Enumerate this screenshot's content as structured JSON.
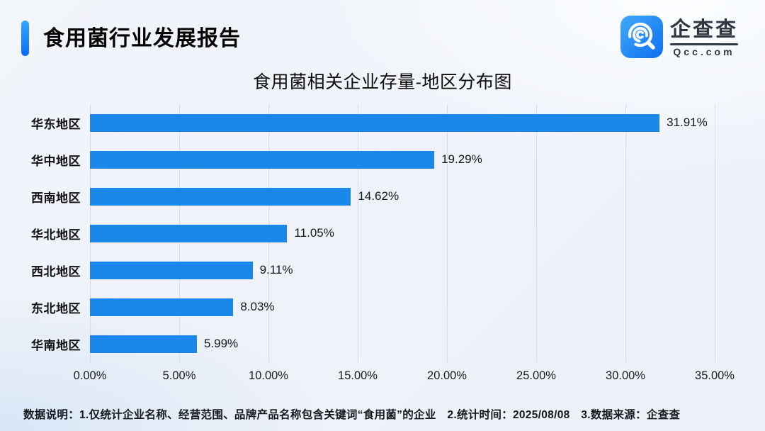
{
  "header": {
    "title": "食用菌行业发展报告"
  },
  "logo": {
    "brand": "企查查",
    "domain": "Qcc.com",
    "icon": "qcc-magnifier-icon"
  },
  "chart_data": {
    "type": "bar",
    "orientation": "horizontal",
    "title": "食用菌相关企业存量-地区分布图",
    "categories": [
      "华东地区",
      "华中地区",
      "西南地区",
      "华北地区",
      "西北地区",
      "东北地区",
      "华南地区"
    ],
    "values": [
      31.91,
      19.29,
      14.62,
      11.05,
      9.11,
      8.03,
      5.99
    ],
    "value_labels": [
      "31.91%",
      "19.29%",
      "14.62%",
      "11.05%",
      "9.11%",
      "8.03%",
      "5.99%"
    ],
    "x_ticks": [
      "0.00%",
      "5.00%",
      "10.00%",
      "15.00%",
      "20.00%",
      "25.00%",
      "30.00%",
      "35.00%"
    ],
    "xlim": [
      0,
      35
    ],
    "grid": true,
    "legend": null,
    "bar_color": "#1B87E8",
    "gridline_color": "#D7DBE3"
  },
  "footer": {
    "note": "数据说明：1.仅统计企业名称、经营范围、品牌产品名称包含关键词“食用菌”的企业　2.统计时间：2025/08/08　3.数据来源：企查查"
  },
  "colors": {
    "accent_blue": "#1B87E8",
    "header_accent_gradient": [
      "#34A5FE",
      "#0B6CF1"
    ],
    "background": "#EEF1F8"
  }
}
